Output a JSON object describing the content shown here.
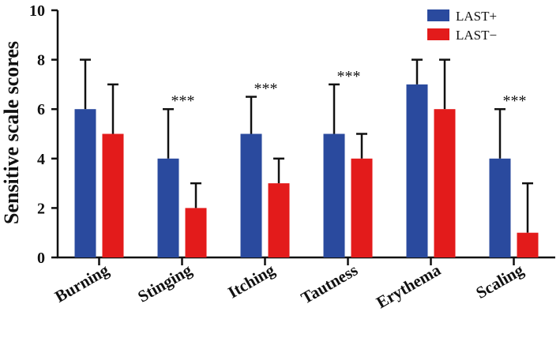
{
  "chart_data": {
    "type": "bar",
    "title": "",
    "xlabel": "",
    "ylabel": "Sensitive scale scores",
    "ylim": [
      0,
      10
    ],
    "yticks": [
      "0",
      "2",
      "4",
      "6",
      "8",
      "10"
    ],
    "categories": [
      "Burning",
      "Stinging",
      "Itching",
      "Tautness",
      "Erythema",
      "Scaling"
    ],
    "series": [
      {
        "name": "LAST+",
        "color": "#2a4a9e",
        "values": [
          6,
          4,
          5,
          5,
          7,
          4
        ],
        "err_upper": [
          8,
          6,
          6.5,
          7,
          8,
          6
        ]
      },
      {
        "name": "LAST−",
        "color": "#e31b1b",
        "values": [
          5,
          2,
          3,
          4,
          6,
          1
        ],
        "err_upper": [
          7,
          3,
          4,
          5,
          8,
          3
        ]
      }
    ],
    "annotations": [
      "",
      "***",
      "***",
      "***",
      "",
      "***"
    ],
    "legend": "top-right",
    "grid": false
  }
}
